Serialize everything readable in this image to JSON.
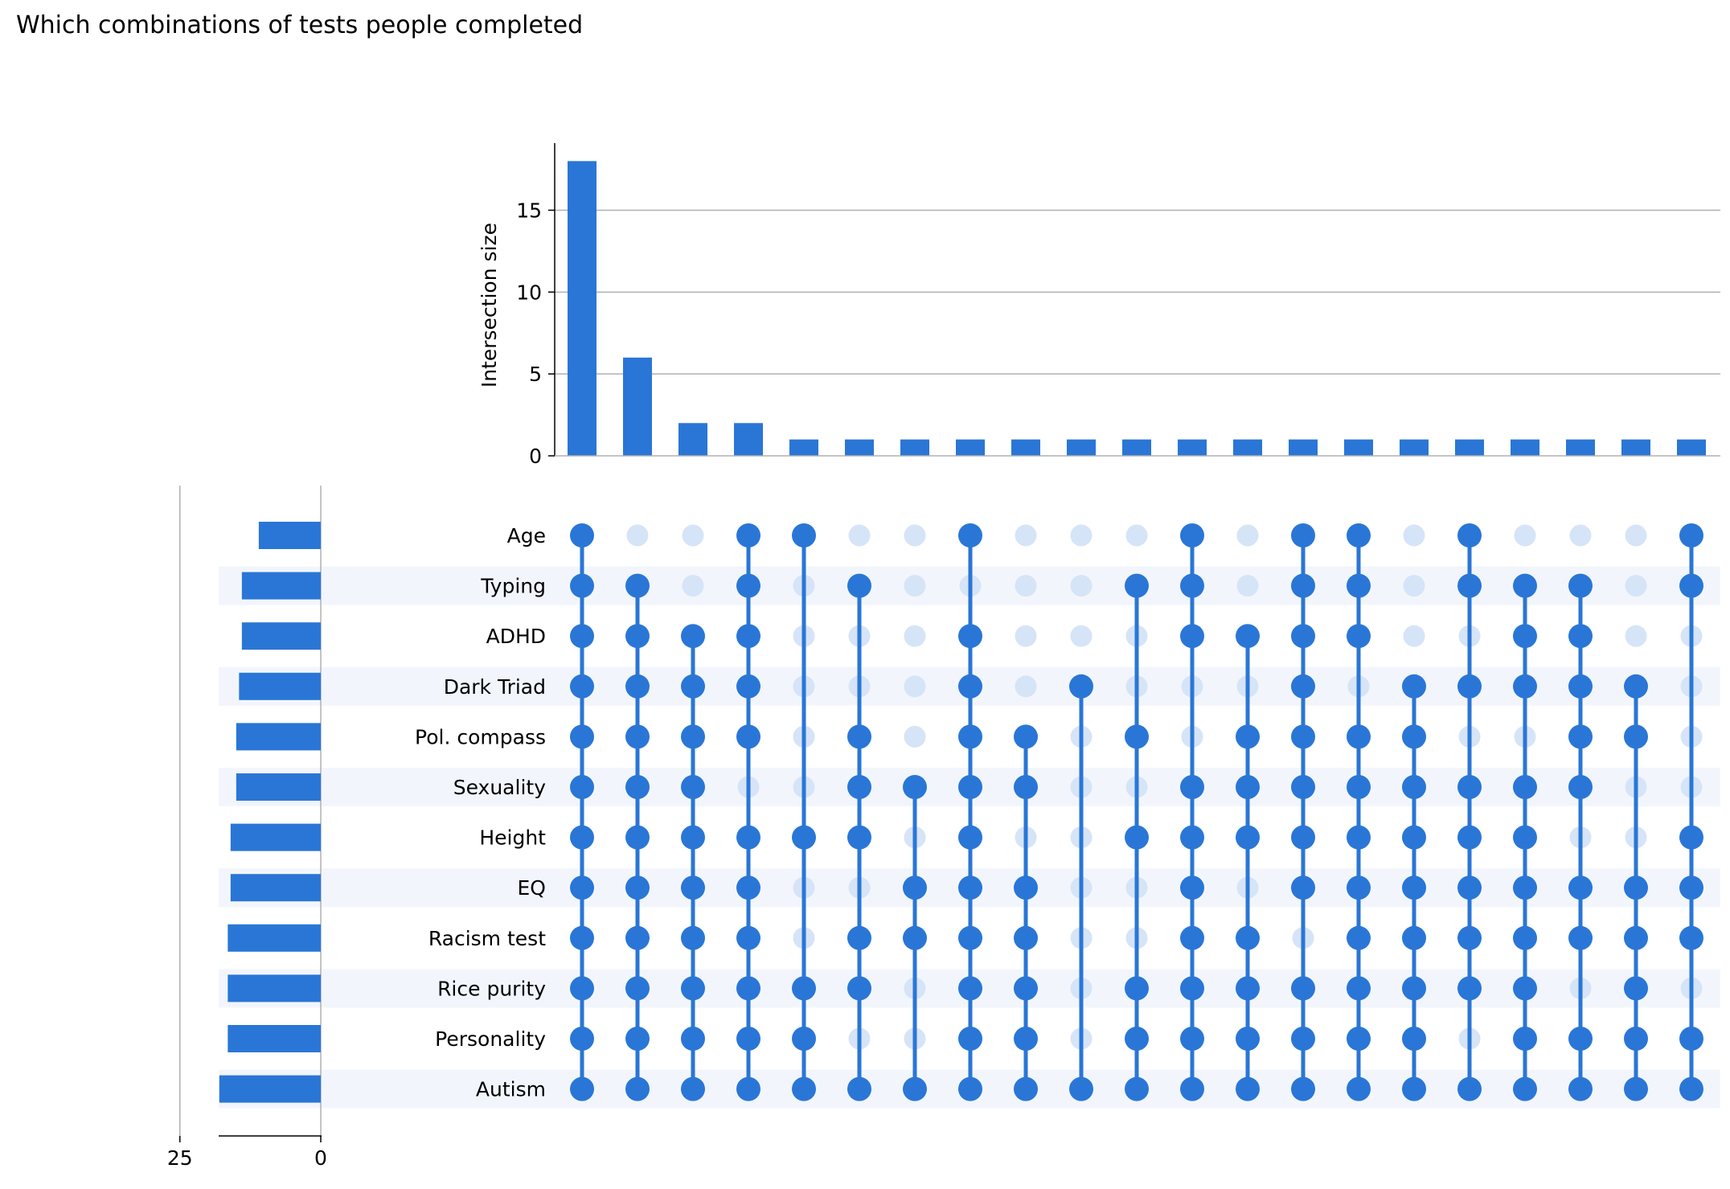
{
  "title": "Which combinations of tests people completed",
  "colors": {
    "accent": "#2a76d6",
    "inactive_dot": "#d6e4f7",
    "row_shade": "#f2f6fc",
    "grid": "#b0b0b0",
    "axis": "#000000"
  },
  "chart_data": {
    "type": "upset",
    "title": "Which combinations of tests people completed",
    "intersection_axis": {
      "label": "Intersection size",
      "ticks": [
        0,
        5,
        10,
        15
      ],
      "ylim": [
        0,
        19
      ]
    },
    "set_size_axis": {
      "ticks": [
        25,
        0
      ]
    },
    "sets": [
      "Age",
      "Typing",
      "ADHD",
      "Dark Triad",
      "Pol. compass",
      "Sexuality",
      "Height",
      "EQ",
      "Racism test",
      "Rice purity",
      "Personality",
      "Autism"
    ],
    "set_sizes": [
      11,
      14,
      14,
      14.5,
      15,
      15,
      16,
      16,
      16.5,
      16.5,
      16.5,
      18
    ],
    "intersections": [
      {
        "size": 18,
        "members": [
          1,
          1,
          1,
          1,
          1,
          1,
          1,
          1,
          1,
          1,
          1,
          1
        ]
      },
      {
        "size": 6,
        "members": [
          0,
          1,
          1,
          1,
          1,
          1,
          1,
          1,
          1,
          1,
          1,
          1
        ]
      },
      {
        "size": 2,
        "members": [
          0,
          0,
          1,
          1,
          1,
          1,
          1,
          1,
          1,
          1,
          1,
          1
        ]
      },
      {
        "size": 2,
        "members": [
          1,
          1,
          1,
          1,
          1,
          0,
          1,
          1,
          1,
          1,
          1,
          1
        ]
      },
      {
        "size": 1,
        "members": [
          1,
          0,
          0,
          0,
          0,
          0,
          1,
          0,
          0,
          1,
          1,
          1
        ]
      },
      {
        "size": 1,
        "members": [
          0,
          1,
          0,
          0,
          1,
          1,
          1,
          0,
          1,
          1,
          0,
          1
        ]
      },
      {
        "size": 1,
        "members": [
          0,
          0,
          0,
          0,
          0,
          1,
          0,
          1,
          1,
          0,
          0,
          1
        ]
      },
      {
        "size": 1,
        "members": [
          1,
          0,
          1,
          1,
          1,
          1,
          1,
          1,
          1,
          1,
          1,
          1
        ]
      },
      {
        "size": 1,
        "members": [
          0,
          0,
          0,
          0,
          1,
          1,
          0,
          1,
          1,
          1,
          1,
          1
        ]
      },
      {
        "size": 1,
        "members": [
          0,
          0,
          0,
          1,
          0,
          0,
          0,
          0,
          0,
          0,
          0,
          1
        ]
      },
      {
        "size": 1,
        "members": [
          0,
          1,
          0,
          0,
          1,
          0,
          1,
          0,
          0,
          1,
          1,
          1
        ]
      },
      {
        "size": 1,
        "members": [
          1,
          1,
          1,
          0,
          0,
          1,
          1,
          1,
          1,
          1,
          1,
          1
        ]
      },
      {
        "size": 1,
        "members": [
          0,
          0,
          1,
          0,
          1,
          1,
          1,
          0,
          1,
          1,
          1,
          1
        ]
      },
      {
        "size": 1,
        "members": [
          1,
          1,
          1,
          1,
          1,
          1,
          1,
          1,
          0,
          1,
          1,
          1
        ]
      },
      {
        "size": 1,
        "members": [
          1,
          1,
          1,
          0,
          1,
          1,
          1,
          1,
          1,
          1,
          1,
          1
        ]
      },
      {
        "size": 1,
        "members": [
          0,
          0,
          0,
          1,
          1,
          1,
          1,
          1,
          1,
          1,
          1,
          1
        ]
      },
      {
        "size": 1,
        "members": [
          1,
          1,
          0,
          1,
          0,
          1,
          1,
          1,
          1,
          1,
          0,
          1
        ]
      },
      {
        "size": 1,
        "members": [
          0,
          1,
          1,
          1,
          0,
          1,
          1,
          1,
          1,
          1,
          1,
          1
        ]
      },
      {
        "size": 1,
        "members": [
          0,
          1,
          1,
          1,
          1,
          1,
          0,
          1,
          1,
          0,
          1,
          1
        ]
      },
      {
        "size": 1,
        "members": [
          0,
          0,
          0,
          1,
          1,
          0,
          0,
          1,
          1,
          1,
          1,
          1
        ]
      },
      {
        "size": 1,
        "members": [
          1,
          1,
          0,
          0,
          0,
          0,
          1,
          1,
          1,
          0,
          1,
          1
        ]
      }
    ],
    "grid": true
  }
}
